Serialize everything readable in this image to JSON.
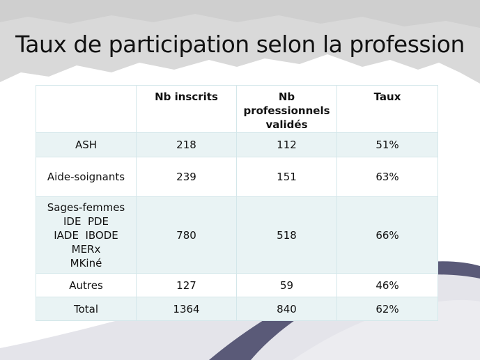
{
  "title": "Taux de participation selon la profession",
  "table": {
    "headers": [
      "",
      "Nb inscrits",
      "Nb professionnels validés",
      "Taux"
    ],
    "header_lines": {
      "col1": [
        "Nb inscrits"
      ],
      "col2": [
        "Nb",
        "professionnels",
        "validés"
      ],
      "col3": [
        "Taux"
      ]
    },
    "rows": [
      {
        "profession": [
          "ASH"
        ],
        "inscrits": "218",
        "valides": "112",
        "taux": "51%"
      },
      {
        "profession": [
          "Aide-soignants"
        ],
        "inscrits": "239",
        "valides": "151",
        "taux": "63%"
      },
      {
        "profession": [
          "Sages-femmes",
          "IDE  PDE",
          "IADE  IBODE",
          "MERx",
          "MKiné"
        ],
        "inscrits": "780",
        "valides": "518",
        "taux": "66%"
      },
      {
        "profession": [
          "Autres"
        ],
        "inscrits": "127",
        "valides": "59",
        "taux": "46%"
      },
      {
        "profession": [
          "Total"
        ],
        "inscrits": "1364",
        "valides": "840",
        "taux": "62%"
      }
    ]
  },
  "colors": {
    "row_band": "#e9f3f4",
    "grid_line": "#d4e7ea",
    "mountain": "#d9d9d9",
    "wave_dark": "#5a5a78"
  }
}
